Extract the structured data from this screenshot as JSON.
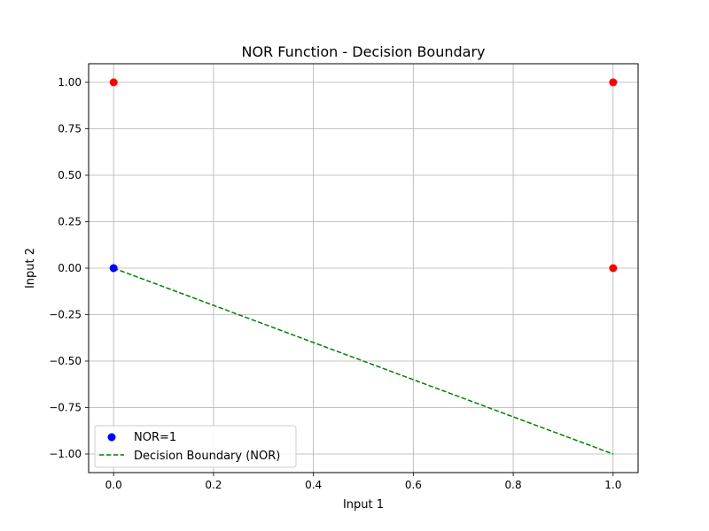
{
  "chart_data": {
    "type": "scatter",
    "title": "NOR Function - Decision Boundary",
    "xlabel": "Input 1",
    "ylabel": "Input 2",
    "xlim": [
      -0.05,
      1.05
    ],
    "ylim": [
      -1.1,
      1.1
    ],
    "x_ticks": [
      0.0,
      0.2,
      0.4,
      0.6,
      0.8,
      1.0
    ],
    "x_tick_labels": [
      "0.0",
      "0.2",
      "0.4",
      "0.6",
      "0.8",
      "1.0"
    ],
    "y_ticks": [
      -1.0,
      -0.75,
      -0.5,
      -0.25,
      0.0,
      0.25,
      0.5,
      0.75,
      1.0
    ],
    "y_tick_labels": [
      "−1.00",
      "−0.75",
      "−0.50",
      "−0.25",
      "0.00",
      "0.25",
      "0.50",
      "0.75",
      "1.00"
    ],
    "grid": true,
    "legend_position": "lower-left",
    "series": [
      {
        "name": "NOR=1",
        "kind": "scatter",
        "color": "#0000ff",
        "points": [
          [
            0,
            0
          ]
        ]
      },
      {
        "kind": "scatter",
        "color": "#ff0000",
        "points": [
          [
            0,
            1
          ],
          [
            1,
            0
          ],
          [
            1,
            1
          ]
        ]
      },
      {
        "name": "Decision Boundary (NOR)",
        "kind": "line",
        "style": "dashed",
        "color": "#008000",
        "points": [
          [
            0,
            0
          ],
          [
            1,
            -1
          ]
        ]
      }
    ]
  }
}
